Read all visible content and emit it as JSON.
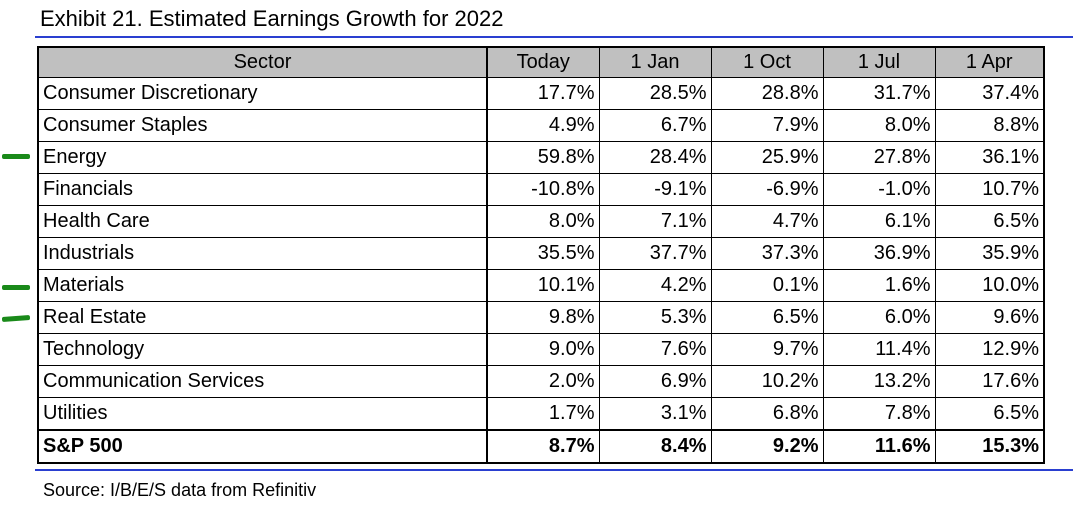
{
  "header": {
    "title": "Exhibit 21. Estimated Earnings Growth for 2022"
  },
  "table": {
    "columns": [
      "Sector",
      "Today",
      "1 Jan",
      "1 Oct",
      "1 Jul",
      "1 Apr"
    ],
    "rows": [
      [
        "Consumer Discretionary",
        "17.7%",
        "28.5%",
        "28.8%",
        "31.7%",
        "37.4%"
      ],
      [
        "Consumer Staples",
        "4.9%",
        "6.7%",
        "7.9%",
        "8.0%",
        "8.8%"
      ],
      [
        "Energy",
        "59.8%",
        "28.4%",
        "25.9%",
        "27.8%",
        "36.1%"
      ],
      [
        "Financials",
        "-10.8%",
        "-9.1%",
        "-6.9%",
        "-1.0%",
        "10.7%"
      ],
      [
        "Health Care",
        "8.0%",
        "7.1%",
        "4.7%",
        "6.1%",
        "6.5%"
      ],
      [
        "Industrials",
        "35.5%",
        "37.7%",
        "37.3%",
        "36.9%",
        "35.9%"
      ],
      [
        "Materials",
        "10.1%",
        "4.2%",
        "0.1%",
        "1.6%",
        "10.0%"
      ],
      [
        "Real Estate",
        "9.8%",
        "5.3%",
        "6.5%",
        "6.0%",
        "9.6%"
      ],
      [
        "Technology",
        "9.0%",
        "7.6%",
        "9.7%",
        "11.4%",
        "12.9%"
      ],
      [
        "Communication Services",
        "2.0%",
        "6.9%",
        "10.2%",
        "13.2%",
        "17.6%"
      ],
      [
        "Utilities",
        "1.7%",
        "3.1%",
        "6.8%",
        "7.8%",
        "6.5%"
      ],
      [
        "S&P 500",
        "8.7%",
        "8.4%",
        "9.2%",
        "11.6%",
        "15.3%"
      ]
    ]
  },
  "footer": {
    "source": "Source: I/B/E/S data from Refinitiv"
  }
}
